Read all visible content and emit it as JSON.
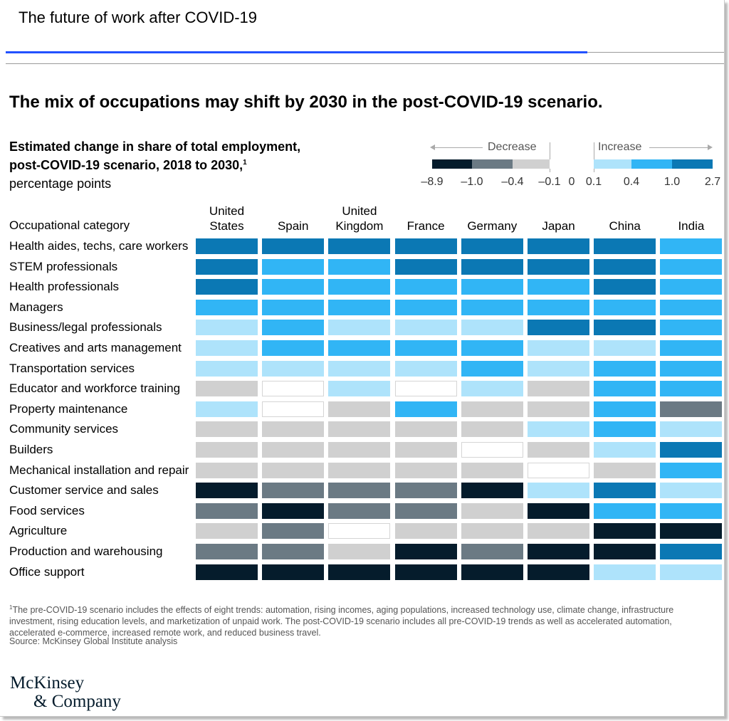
{
  "header": {
    "page_title": "The future of work after COVID-19"
  },
  "chart_data": {
    "type": "heatmap",
    "title": "The mix of occupations may shift by 2030 in the post-COVID-19 scenario.",
    "subtitle_line1": "Estimated change in share of total employment,",
    "subtitle_line2": "post-COVID-19 scenario, 2018 to 2030,",
    "subtitle_footnote_mark": "1",
    "units": "percentage points",
    "row_header": "Occupational category",
    "columns": [
      "United\nStates",
      "Spain",
      "United\nKingdom",
      "France",
      "Germany",
      "Japan",
      "China",
      "India"
    ],
    "rows": [
      "Health aides, techs, care workers",
      "STEM professionals",
      "Health professionals",
      "Managers",
      "Business/legal professionals",
      "Creatives and arts management",
      "Transportation services",
      "Educator and workforce training",
      "Property maintenance",
      "Community services",
      "Builders",
      "Mechanical installation and repair",
      "Customer service and sales",
      "Food services",
      "Agriculture",
      "Production and warehousing",
      "Office support"
    ],
    "legend": {
      "decrease_label": "Decrease",
      "increase_label": "Increase",
      "bins": [
        {
          "range": "-8.9 to -1.0",
          "color": "#051c2c"
        },
        {
          "range": "-1.0 to -0.4",
          "color": "#6b7a84"
        },
        {
          "range": "-0.4 to -0.1",
          "color": "#d0d0d0"
        },
        {
          "range": "-0.1 to 0",
          "color": "#ffffff"
        },
        {
          "range": "0 to 0.1",
          "color": "#ffffff"
        },
        {
          "range": "0.1 to 0.4",
          "color": "#aee3fb"
        },
        {
          "range": "0.4 to 1.0",
          "color": "#31b5f5"
        },
        {
          "range": "1.0 to 2.7",
          "color": "#0b78b4"
        }
      ],
      "tick_labels": [
        "–8.9",
        "–1.0",
        "–0.4",
        "–0.1",
        "0",
        "0.1",
        "0.4",
        "1.0",
        "2.7"
      ]
    },
    "bin_scale": "bin -3 = -8.9 to -1.0, -2 = -1.0 to -0.4, -1 = -0.4 to -0.1, 0 = -0.1 to 0.1, 1 = 0.1 to 0.4, 2 = 0.4 to 1.0, 3 = 1.0 to 2.7",
    "bins_matrix": [
      [
        3,
        3,
        3,
        3,
        3,
        3,
        3,
        2
      ],
      [
        3,
        2,
        2,
        3,
        3,
        3,
        3,
        2
      ],
      [
        3,
        2,
        2,
        2,
        2,
        2,
        3,
        2
      ],
      [
        2,
        2,
        2,
        2,
        2,
        2,
        2,
        2
      ],
      [
        1,
        2,
        1,
        1,
        1,
        3,
        3,
        2
      ],
      [
        1,
        2,
        2,
        2,
        2,
        1,
        1,
        2
      ],
      [
        1,
        1,
        1,
        1,
        2,
        1,
        2,
        2
      ],
      [
        -1,
        0,
        1,
        0,
        1,
        -1,
        2,
        2
      ],
      [
        1,
        0,
        -1,
        2,
        -1,
        -1,
        2,
        -2
      ],
      [
        -1,
        -1,
        -1,
        -1,
        -1,
        1,
        2,
        1
      ],
      [
        -1,
        -1,
        -1,
        -1,
        0,
        -1,
        1,
        3
      ],
      [
        -1,
        -1,
        -1,
        -1,
        -1,
        0,
        -1,
        2
      ],
      [
        -3,
        -2,
        -2,
        -2,
        -3,
        1,
        3,
        1
      ],
      [
        -2,
        -3,
        -2,
        -2,
        -1,
        -3,
        2,
        2
      ],
      [
        -1,
        -2,
        0,
        -1,
        -1,
        -1,
        -3,
        -3
      ],
      [
        -2,
        -2,
        -1,
        -3,
        -2,
        -3,
        -3,
        3
      ],
      [
        -3,
        -3,
        -3,
        -3,
        -3,
        -3,
        1,
        1
      ]
    ],
    "colors": {
      "-3": "#051c2c",
      "-2": "#6b7a84",
      "-1": "#d0d0d0",
      "0": "#ffffff",
      "1": "#aee3fb",
      "2": "#31b5f5",
      "3": "#0b78b4"
    }
  },
  "footnote": {
    "mark": "1",
    "text": "The pre-COVID-19 scenario includes the effects of eight trends: automation, rising incomes, aging populations, increased technology use, climate change, infrastructure investment, rising education levels, and marketization of unpaid work. The post-COVID-19 scenario includes all pre-COVID-19 trends as well as accelerated automation, accelerated e-commerce, increased remote work, and reduced business travel.",
    "source": "Source: McKinsey Global Institute analysis"
  },
  "logo": {
    "line1": "McKinsey",
    "line2": "& Company"
  }
}
